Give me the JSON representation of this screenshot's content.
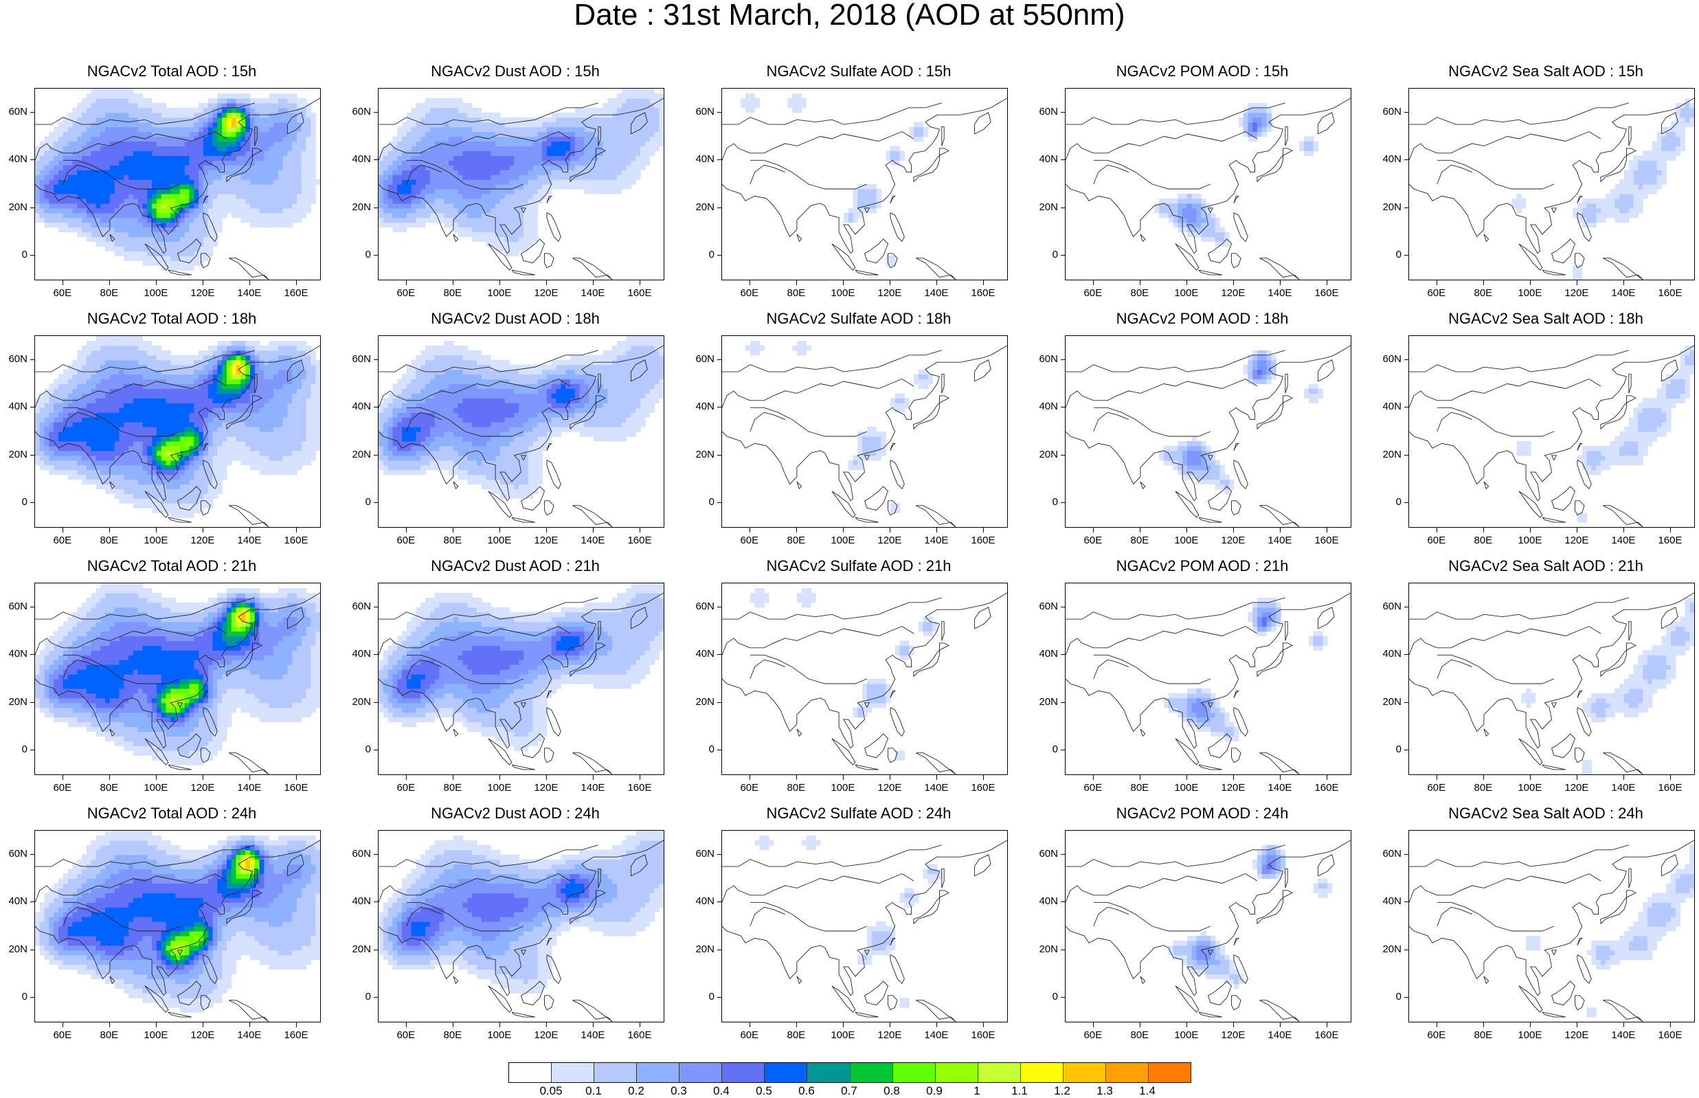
{
  "title": "Date : 31st March, 2018 (AOD at 550nm)",
  "panels": [
    {
      "title": "NGACv2 Total AOD : 15h",
      "product": "total"
    },
    {
      "title": "NGACv2 Dust AOD : 15h",
      "product": "dust"
    },
    {
      "title": "NGACv2 Sulfate AOD : 15h",
      "product": "sulfate"
    },
    {
      "title": "NGACv2 POM AOD : 15h",
      "product": "pom"
    },
    {
      "title": "NGACv2 Sea Salt AOD : 15h",
      "product": "seasalt"
    },
    {
      "title": "NGACv2 Total AOD : 18h",
      "product": "total"
    },
    {
      "title": "NGACv2 Dust AOD : 18h",
      "product": "dust"
    },
    {
      "title": "NGACv2 Sulfate AOD : 18h",
      "product": "sulfate"
    },
    {
      "title": "NGACv2 POM AOD : 18h",
      "product": "pom"
    },
    {
      "title": "NGACv2 Sea Salt AOD : 18h",
      "product": "seasalt"
    },
    {
      "title": "NGACv2 Total AOD : 21h",
      "product": "total"
    },
    {
      "title": "NGACv2 Dust AOD : 21h",
      "product": "dust"
    },
    {
      "title": "NGACv2 Sulfate AOD : 21h",
      "product": "sulfate"
    },
    {
      "title": "NGACv2 POM AOD : 21h",
      "product": "pom"
    },
    {
      "title": "NGACv2 Sea Salt AOD : 21h",
      "product": "seasalt"
    },
    {
      "title": "NGACv2 Total AOD : 24h",
      "product": "total"
    },
    {
      "title": "NGACv2 Dust AOD : 24h",
      "product": "dust"
    },
    {
      "title": "NGACv2 Sulfate AOD : 24h",
      "product": "sulfate"
    },
    {
      "title": "NGACv2 POM AOD : 24h",
      "product": "pom"
    },
    {
      "title": "NGACv2 Sea Salt  AOD : 24h",
      "product": "seasalt"
    }
  ],
  "lat_labels": [
    "60N",
    "40N",
    "20N",
    "0"
  ],
  "lon_labels": [
    "60E",
    "80E",
    "100E",
    "120E",
    "140E",
    "160E"
  ],
  "colorbar": {
    "colors": [
      "#ffffff",
      "#d6e2ff",
      "#b5c9ff",
      "#8eb2ff",
      "#7f96ff",
      "#6370f8",
      "#0063ff",
      "#009696",
      "#00c633",
      "#63ff00",
      "#96ff00",
      "#c6ff33",
      "#ffff00",
      "#ffc600",
      "#ffa000",
      "#ff7c00",
      "#ff1900"
    ],
    "labels": [
      "0.05",
      "0.1",
      "0.2",
      "0.3",
      "0.4",
      "0.5",
      "0.6",
      "0.7",
      "0.8",
      "0.9",
      "1",
      "1.1",
      "1.2",
      "1.3",
      "1.4"
    ]
  }
}
